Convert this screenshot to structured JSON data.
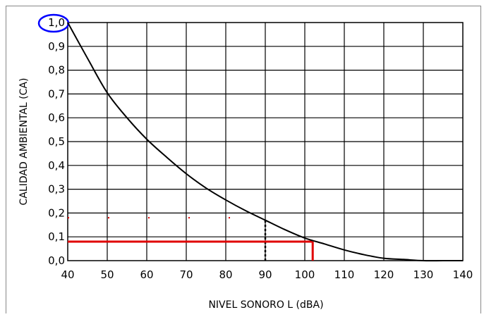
{
  "chart_data": {
    "type": "line",
    "xlabel": "NIVEL SONORO L (dBA)",
    "ylabel": "CALIDAD AMBIENTAL (CA)",
    "xlim": [
      40,
      140
    ],
    "ylim": [
      0,
      1
    ],
    "x_ticks": [
      "40",
      "50",
      "60",
      "70",
      "80",
      "90",
      "100",
      "110",
      "120",
      "130",
      "140"
    ],
    "y_ticks": [
      "0,0",
      "0,1",
      "0,2",
      "0,3",
      "0,4",
      "0,5",
      "0,6",
      "0,7",
      "0,8",
      "0,9",
      "1,0"
    ],
    "grid": true,
    "series": [
      {
        "x": [
          40,
          45,
          50,
          55,
          60,
          65,
          70,
          75,
          80,
          85,
          90,
          95,
          100,
          105,
          110,
          115,
          120,
          125,
          130,
          135,
          140
        ],
        "y": [
          1.0,
          0.85,
          0.705,
          0.6,
          0.51,
          0.435,
          0.365,
          0.305,
          0.255,
          0.21,
          0.17,
          0.13,
          0.095,
          0.07,
          0.045,
          0.025,
          0.01,
          0.005,
          0.0,
          0.0,
          0.0
        ],
        "color": "#000000"
      }
    ],
    "annotations": [
      {
        "type": "dotted-hline",
        "y": 0.18,
        "x_from": 40,
        "x_to": 90,
        "color": "#e00000"
      },
      {
        "type": "dotted-vline",
        "x": 90,
        "y_from": 0.0,
        "y_to": 0.17,
        "color": "#000000"
      },
      {
        "type": "hline",
        "y": 0.08,
        "x_from": 40,
        "x_to": 102,
        "color": "#e00000"
      },
      {
        "type": "vline",
        "x": 102,
        "y_from": 0.0,
        "y_to": 0.08,
        "color": "#e00000"
      },
      {
        "type": "ellipse-highlight",
        "target": "y-tick 1,0",
        "color": "#0000ff"
      }
    ]
  }
}
